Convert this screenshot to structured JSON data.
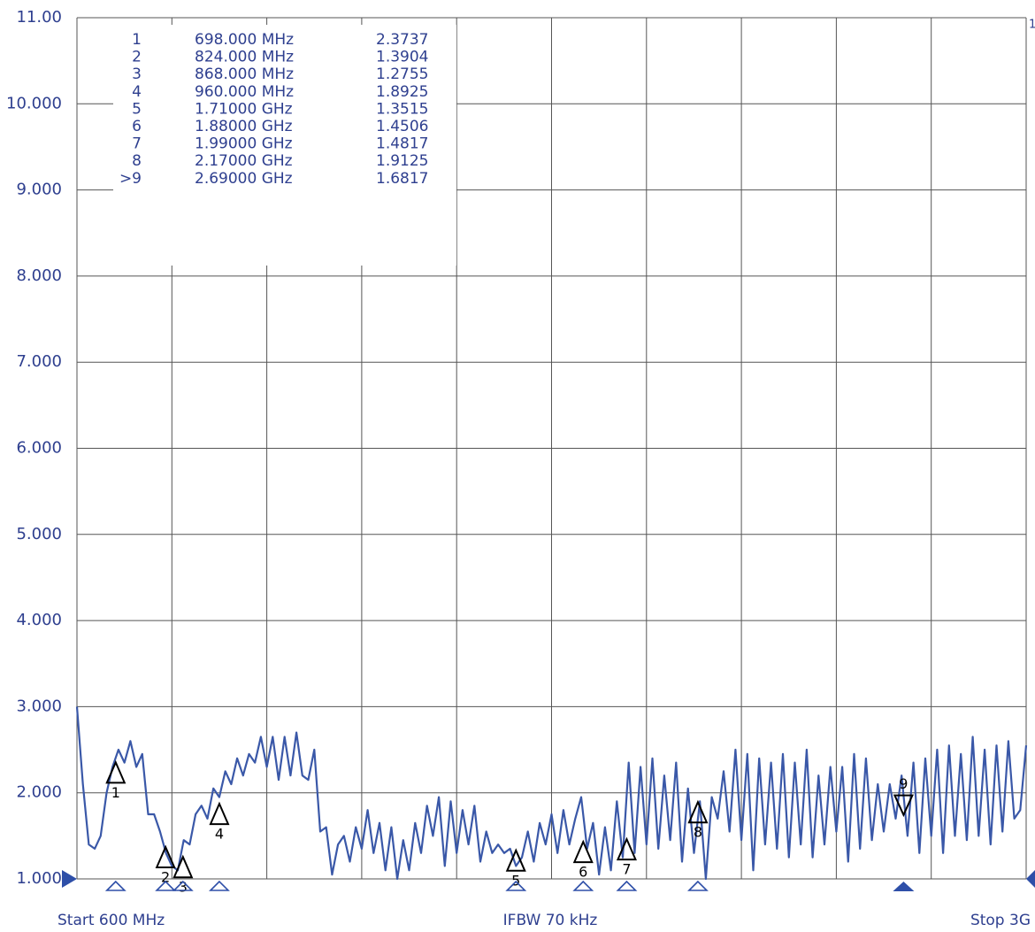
{
  "chart_data": {
    "type": "line",
    "xlim": [
      600,
      3000
    ],
    "ylim": [
      1,
      11
    ],
    "yticks": [
      {
        "value": 1,
        "label": "1.000"
      },
      {
        "value": 2,
        "label": "2.000"
      },
      {
        "value": 3,
        "label": "3.000"
      },
      {
        "value": 4,
        "label": "4.000"
      },
      {
        "value": 5,
        "label": "5.000"
      },
      {
        "value": 6,
        "label": "6.000"
      },
      {
        "value": 7,
        "label": "7.000"
      },
      {
        "value": 8,
        "label": "8.000"
      },
      {
        "value": 9,
        "label": "9.000"
      },
      {
        "value": 10,
        "label": "10.000"
      },
      {
        "value": 11,
        "label": "11.00"
      }
    ],
    "grid": true,
    "start_label": "Start 600 MHz",
    "center_label": "IFBW 70 kHz",
    "stop_label": "Stop 3G",
    "trace_label": "1",
    "series": [
      {
        "color": "#3a58a8",
        "x": [
          600,
          615,
          630,
          645,
          660,
          675,
          690,
          705,
          720,
          735,
          750,
          765,
          780,
          795,
          810,
          825,
          840,
          855,
          870,
          885,
          900,
          915,
          930,
          945,
          960,
          975,
          990,
          1005,
          1020,
          1035,
          1050,
          1065,
          1080,
          1095,
          1110,
          1125,
          1140,
          1155,
          1170,
          1185,
          1200,
          1215,
          1230,
          1245,
          1260,
          1275,
          1290,
          1305,
          1320,
          1335,
          1350,
          1365,
          1380,
          1395,
          1410,
          1425,
          1440,
          1455,
          1470,
          1485,
          1500,
          1515,
          1530,
          1545,
          1560,
          1575,
          1590,
          1605,
          1620,
          1635,
          1650,
          1665,
          1680,
          1695,
          1710,
          1725,
          1740,
          1755,
          1770,
          1785,
          1800,
          1815,
          1830,
          1845,
          1860,
          1875,
          1890,
          1905,
          1920,
          1935,
          1950,
          1965,
          1980,
          1995,
          2010,
          2025,
          2040,
          2055,
          2070,
          2085,
          2100,
          2115,
          2130,
          2145,
          2160,
          2175,
          2190,
          2205,
          2220,
          2235,
          2250,
          2265,
          2280,
          2295,
          2310,
          2325,
          2340,
          2355,
          2370,
          2385,
          2400,
          2415,
          2430,
          2445,
          2460,
          2475,
          2490,
          2505,
          2520,
          2535,
          2550,
          2565,
          2580,
          2595,
          2610,
          2625,
          2640,
          2655,
          2670,
          2685,
          2700,
          2715,
          2730,
          2745,
          2760,
          2775,
          2790,
          2805,
          2820,
          2835,
          2850,
          2865,
          2880,
          2895,
          2910,
          2925,
          2940,
          2955,
          2970,
          2985,
          3000
        ],
        "values": [
          3.0,
          2.1,
          1.4,
          1.35,
          1.5,
          2.0,
          2.3,
          2.5,
          2.35,
          2.6,
          2.3,
          2.45,
          1.75,
          1.75,
          1.55,
          1.3,
          1.15,
          1.1,
          1.45,
          1.4,
          1.75,
          1.85,
          1.7,
          2.05,
          1.95,
          2.25,
          2.1,
          2.4,
          2.2,
          2.45,
          2.35,
          2.65,
          2.3,
          2.65,
          2.15,
          2.65,
          2.2,
          2.7,
          2.2,
          2.15,
          2.5,
          1.55,
          1.6,
          1.05,
          1.4,
          1.5,
          1.2,
          1.6,
          1.35,
          1.8,
          1.3,
          1.65,
          1.1,
          1.6,
          1.0,
          1.45,
          1.1,
          1.65,
          1.3,
          1.85,
          1.5,
          1.95,
          1.15,
          1.9,
          1.3,
          1.8,
          1.4,
          1.85,
          1.2,
          1.55,
          1.3,
          1.4,
          1.3,
          1.35,
          1.15,
          1.25,
          1.55,
          1.2,
          1.65,
          1.4,
          1.75,
          1.3,
          1.8,
          1.4,
          1.7,
          1.95,
          1.35,
          1.65,
          1.05,
          1.6,
          1.1,
          1.9,
          1.25,
          2.35,
          1.3,
          2.3,
          1.4,
          2.4,
          1.35,
          2.2,
          1.45,
          2.35,
          1.2,
          2.05,
          1.3,
          1.9,
          1.0,
          1.95,
          1.7,
          2.25,
          1.55,
          2.5,
          1.45,
          2.45,
          1.1,
          2.4,
          1.4,
          2.35,
          1.35,
          2.45,
          1.25,
          2.35,
          1.4,
          2.5,
          1.25,
          2.2,
          1.4,
          2.3,
          1.55,
          2.3,
          1.2,
          2.45,
          1.35,
          2.4,
          1.45,
          2.1,
          1.55,
          2.1,
          1.7,
          2.2,
          1.5,
          2.35,
          1.3,
          2.4,
          1.5,
          2.5,
          1.3,
          2.55,
          1.5,
          2.45,
          1.45,
          2.65,
          1.5,
          2.5,
          1.4,
          2.55,
          1.55,
          2.6,
          1.7,
          1.8,
          2.55
        ]
      }
    ],
    "markers": [
      {
        "table_label": "1",
        "label": "1",
        "frequency": "698.000 MHz",
        "x": 698,
        "value": 2.3737,
        "active": false
      },
      {
        "table_label": "2",
        "label": "2",
        "frequency": "824.000 MHz",
        "x": 824,
        "value": 1.3904,
        "active": false
      },
      {
        "table_label": "3",
        "label": "3",
        "frequency": "868.000 MHz",
        "x": 868,
        "value": 1.2755,
        "active": false
      },
      {
        "table_label": "4",
        "label": "4",
        "frequency": "960.000 MHz",
        "x": 960,
        "value": 1.8925,
        "active": false
      },
      {
        "table_label": "5",
        "label": "5",
        "frequency": "1.71000 GHz",
        "x": 1710,
        "value": 1.3515,
        "active": false
      },
      {
        "table_label": "6",
        "label": "6",
        "frequency": "1.88000 GHz",
        "x": 1880,
        "value": 1.4506,
        "active": false
      },
      {
        "table_label": "7",
        "label": "7",
        "frequency": "1.99000 GHz",
        "x": 1990,
        "value": 1.4817,
        "active": false
      },
      {
        "table_label": "8",
        "label": "8",
        "frequency": "2.17000 GHz",
        "x": 2170,
        "value": 1.9125,
        "active": false
      },
      {
        "table_label": ">9",
        "label": "9",
        "frequency": "2.69000 GHz",
        "x": 2690,
        "value": 1.6817,
        "active": true
      }
    ]
  }
}
